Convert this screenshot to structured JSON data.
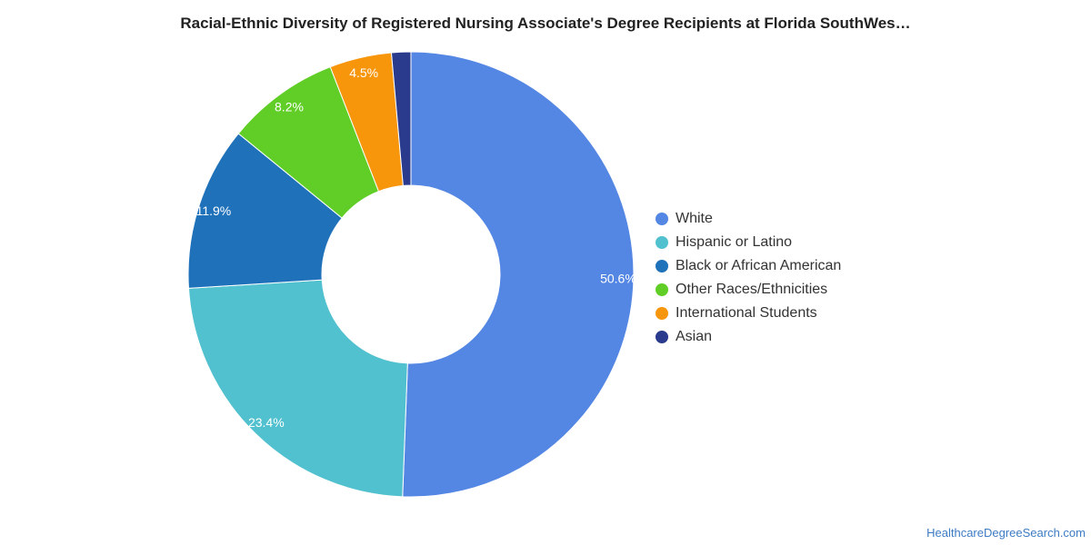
{
  "chart_data": {
    "type": "pie",
    "title": "Racial-Ethnic Diversity of Registered Nursing Associate's Degree Recipients at Florida SouthWes…",
    "categories": [
      "White",
      "Hispanic or Latino",
      "Black or African American",
      "Other Races/Ethnicities",
      "International Students",
      "Asian"
    ],
    "values": [
      50.6,
      23.4,
      11.9,
      8.2,
      4.5,
      1.4
    ],
    "labels": [
      "50.6%",
      "23.4%",
      "11.9%",
      "8.2%",
      "4.5%",
      ""
    ],
    "colors": [
      "#5486e3",
      "#51c0cf",
      "#1f71ba",
      "#60ce26",
      "#f7950b",
      "#2a3a8c"
    ],
    "donut": true,
    "legend_position": "right"
  },
  "source": "HealthcareDegreeSearch.com"
}
